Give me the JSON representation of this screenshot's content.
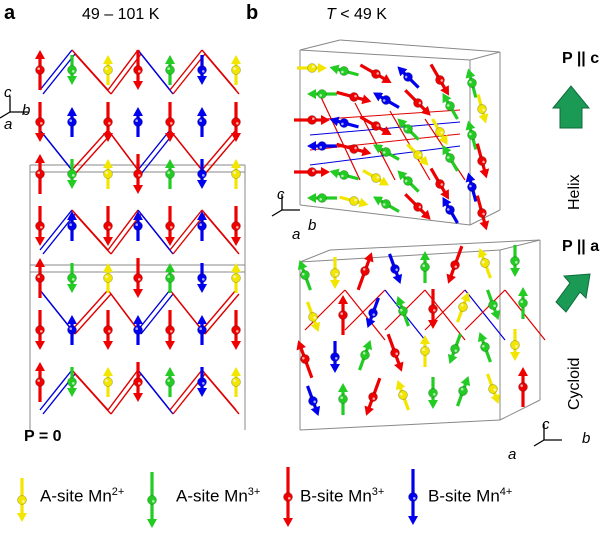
{
  "panel_a": {
    "letter": "a",
    "title": "49 – 101 K",
    "polarization": "P = 0",
    "axes": {
      "c": "c",
      "b": "b",
      "a": "a"
    }
  },
  "panel_b": {
    "letter": "b",
    "title_prefix": "T",
    "title_suffix": " < 49 K",
    "top": {
      "polarization": "P || c",
      "order": "Helix",
      "axes": {
        "c": "c",
        "b": "b",
        "a": "a"
      }
    },
    "bottom": {
      "polarization": "P || a",
      "order": "Cycloid",
      "axes": {
        "c": "c",
        "b": "b",
        "a": "a"
      }
    }
  },
  "legend": [
    {
      "label": "A-site Mn",
      "charge": "2+",
      "color": "#f2e600"
    },
    {
      "label": "A-site Mn",
      "charge": "3+",
      "color": "#22cc22"
    },
    {
      "label": "B-site Mn",
      "charge": "3+",
      "color": "#ee0000"
    },
    {
      "label": "B-site Mn",
      "charge": "4+",
      "color": "#0000ee"
    }
  ],
  "colors": {
    "polarization_arrow": "#1a9a55",
    "bond_red": "#e00000",
    "bond_blue": "#0000dd",
    "cell_line": "#888888"
  }
}
